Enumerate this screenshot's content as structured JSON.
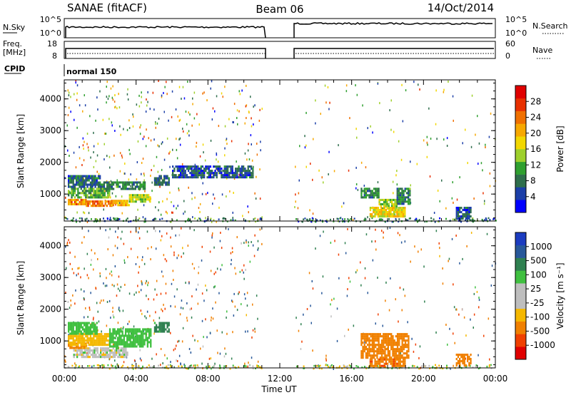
{
  "header": {
    "radar": "SANAE (fitACF)",
    "beam": "Beam 06",
    "date": "14/Oct/2014"
  },
  "status_panel": {
    "nsky_label": "N.Sky",
    "nsky_ticks": [
      "10^5",
      "10^0"
    ],
    "nsearch_label": "N.Search",
    "nsearch_ticks": [
      "10^5",
      "10^0"
    ],
    "freq_label": "Freq.",
    "freq_unit": "[MHz]",
    "freq_ticks": [
      "18",
      "8"
    ],
    "nave_label": "Nave",
    "nave_ticks": [
      "60",
      "0"
    ],
    "cpid_label": "CPID",
    "cpid_value": "normal 150"
  },
  "colors": {
    "power": [
      "#0000ff",
      "#1c3fa8",
      "#2f6e4c",
      "#30a030",
      "#9ed02c",
      "#f2d700",
      "#f7a800",
      "#f07000",
      "#e83000",
      "#e00000"
    ],
    "velocity": [
      "#e00000",
      "#f04000",
      "#f08000",
      "#f5b800",
      "#bebebe",
      "#bebebe",
      "#40c040",
      "#2f8050",
      "#28589a",
      "#1c3cc0"
    ]
  },
  "chart_data": [
    {
      "type": "heatmap",
      "parameter": "Power",
      "ylabel": "Slant Range [km]",
      "yticks": [
        1000,
        2000,
        3000,
        4000
      ],
      "ylim": [
        150,
        4600
      ],
      "xlim": [
        0,
        24
      ],
      "xticks": [
        0,
        4,
        8,
        12,
        16,
        20,
        24
      ],
      "colorbar": {
        "label": "Power [dB]",
        "ticks": [
          "4",
          "8",
          "12",
          "16",
          "20",
          "24",
          "28"
        ],
        "range": [
          0,
          32
        ]
      },
      "patches": [
        {
          "t0": 0.2,
          "t1": 1.2,
          "r0": 650,
          "r1": 850,
          "value": 22
        },
        {
          "t0": 1.2,
          "t1": 2.6,
          "r0": 600,
          "r1": 800,
          "value": 24
        },
        {
          "t0": 2.6,
          "t1": 3.6,
          "r0": 620,
          "r1": 820,
          "value": 20
        },
        {
          "t0": 3.6,
          "t1": 4.8,
          "r0": 750,
          "r1": 1000,
          "value": 14
        },
        {
          "t0": 0.2,
          "t1": 2.5,
          "r0": 900,
          "r1": 1200,
          "value": 12
        },
        {
          "t0": 0.2,
          "t1": 2.0,
          "r0": 1200,
          "r1": 1600,
          "value": 7
        },
        {
          "t0": 2.0,
          "t1": 4.5,
          "r0": 1150,
          "r1": 1400,
          "value": 9
        },
        {
          "t0": 5.0,
          "t1": 5.8,
          "r0": 1300,
          "r1": 1600,
          "value": 6
        },
        {
          "t0": 6.0,
          "t1": 10.5,
          "r0": 1500,
          "r1": 1900,
          "value": 6
        },
        {
          "t0": 16.5,
          "t1": 17.5,
          "r0": 900,
          "r1": 1200,
          "value": 9
        },
        {
          "t0": 17.5,
          "t1": 18.5,
          "r0": 550,
          "r1": 850,
          "value": 14
        },
        {
          "t0": 18.5,
          "t1": 19.2,
          "r0": 700,
          "r1": 1200,
          "value": 9
        },
        {
          "t0": 17.0,
          "t1": 19.0,
          "r0": 300,
          "r1": 600,
          "value": 18
        },
        {
          "t0": 21.8,
          "t1": 22.6,
          "r0": 200,
          "r1": 600,
          "value": 6
        }
      ]
    },
    {
      "type": "heatmap",
      "parameter": "Velocity",
      "ylabel": "Slant Range [km]",
      "yticks": [
        1000,
        2000,
        3000,
        4000
      ],
      "ylim": [
        150,
        4600
      ],
      "xlim": [
        0,
        24
      ],
      "xticks": [
        0,
        4,
        8,
        12,
        16,
        20,
        24
      ],
      "xtick_labels": [
        "00:00",
        "04:00",
        "08:00",
        "12:00",
        "16:00",
        "20:00",
        "00:00"
      ],
      "xlabel": "Time UT",
      "colorbar": {
        "label": "Velocity [m s⁻¹]",
        "ticks": [
          "-1000",
          "-500",
          "-100",
          "-25",
          "25",
          "100",
          "500",
          "1000"
        ]
      },
      "patches": [
        {
          "t0": 0.5,
          "t1": 3.5,
          "r0": 500,
          "r1": 800,
          "value": 0
        },
        {
          "t0": 0.2,
          "t1": 1.2,
          "r0": 750,
          "r1": 950,
          "value": -150
        },
        {
          "t0": 0.2,
          "t1": 2.5,
          "r0": 900,
          "r1": 1250,
          "value": -60
        },
        {
          "t0": 0.2,
          "t1": 1.8,
          "r0": 1250,
          "r1": 1600,
          "value": 60
        },
        {
          "t0": 2.5,
          "t1": 4.8,
          "r0": 800,
          "r1": 1400,
          "value": 60
        },
        {
          "t0": 5.0,
          "t1": 5.8,
          "r0": 1300,
          "r1": 1600,
          "value": 150
        },
        {
          "t0": 16.5,
          "t1": 19.2,
          "r0": 500,
          "r1": 1250,
          "value": -300
        },
        {
          "t0": 17.0,
          "t1": 19.0,
          "r0": 200,
          "r1": 450,
          "value": -400
        },
        {
          "t0": 21.8,
          "t1": 22.6,
          "r0": 200,
          "r1": 600,
          "value": -200
        }
      ]
    }
  ]
}
